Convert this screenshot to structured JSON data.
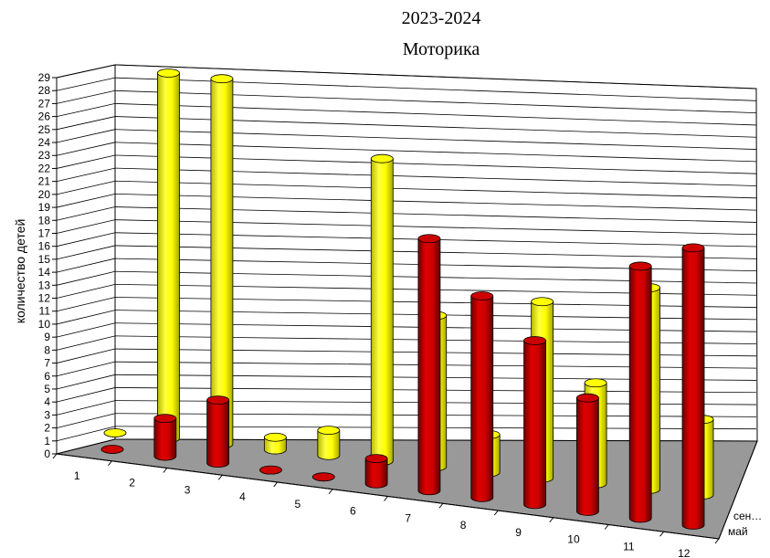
{
  "chart_data": {
    "type": "bar",
    "title": "2023-2024",
    "subtitle": "Моторика",
    "ylabel": "количество детей",
    "xlabel": "",
    "ylim": [
      0,
      29
    ],
    "yticks": [
      "0",
      "1",
      "2",
      "3",
      "4",
      "5",
      "6",
      "7",
      "8",
      "9",
      "10",
      "11",
      "12",
      "13",
      "14",
      "15",
      "16",
      "17",
      "18",
      "19",
      "20",
      "21",
      "22",
      "23",
      "24",
      "25",
      "26",
      "27",
      "28",
      "29"
    ],
    "categories": [
      "1",
      "2",
      "3",
      "4",
      "5",
      "6",
      "7",
      "8",
      "9",
      "10",
      "11",
      "12"
    ],
    "grid": true,
    "series": [
      {
        "name": "сен…",
        "color": "#ffff00",
        "values": [
          0,
          29,
          29,
          1,
          2,
          24,
          12,
          3,
          14,
          8,
          16,
          6
        ]
      },
      {
        "name": "май",
        "color": "#cc0000",
        "values": [
          0,
          3,
          5,
          0,
          0,
          2,
          20,
          16,
          13,
          9,
          20,
          22
        ]
      }
    ]
  }
}
